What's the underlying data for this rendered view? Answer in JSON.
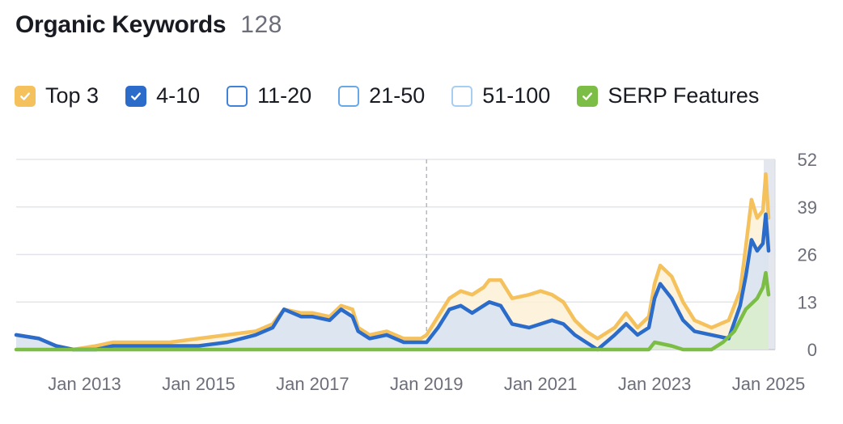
{
  "header": {
    "title": "Organic Keywords",
    "count": "128"
  },
  "legend": [
    {
      "label": "Top 3",
      "checked": true,
      "fill": "#f4c15d",
      "border": "#f4c15d",
      "icon": "check-icon"
    },
    {
      "label": "4-10",
      "checked": true,
      "fill": "#2b6bc9",
      "border": "#2b6bc9",
      "icon": "check-icon"
    },
    {
      "label": "11-20",
      "checked": false,
      "fill": "#ffffff",
      "border": "#3f82d8",
      "icon": ""
    },
    {
      "label": "21-50",
      "checked": false,
      "fill": "#ffffff",
      "border": "#69a8e6",
      "icon": ""
    },
    {
      "label": "51-100",
      "checked": false,
      "fill": "#ffffff",
      "border": "#a6cdf2",
      "icon": ""
    },
    {
      "label": "SERP Features",
      "checked": true,
      "fill": "#7cbd45",
      "border": "#7cbd45",
      "icon": "check-icon"
    }
  ],
  "chart_data": {
    "type": "area",
    "x_ticks": [
      "Jan 2013",
      "Jan 2015",
      "Jan 2017",
      "Jan 2019",
      "Jan 2021",
      "Jan 2023",
      "Jan 2025"
    ],
    "y_ticks": [
      "0",
      "13",
      "26",
      "39",
      "52"
    ],
    "ylim": [
      0,
      52
    ],
    "xlim": [
      2011.8,
      2025.0
    ],
    "y_axis_position": "right",
    "grid": true,
    "marker_line_x": 2019.0,
    "series": [
      {
        "name": "Top 3",
        "color": "#f4c15d",
        "fill": "#fdf1d6",
        "points": [
          [
            2011.8,
            4
          ],
          [
            2012.2,
            3
          ],
          [
            2012.5,
            1
          ],
          [
            2012.8,
            0
          ],
          [
            2013.2,
            1
          ],
          [
            2013.5,
            2
          ],
          [
            2014.0,
            2
          ],
          [
            2014.5,
            2
          ],
          [
            2015.0,
            3
          ],
          [
            2015.5,
            4
          ],
          [
            2016.0,
            5
          ],
          [
            2016.3,
            7
          ],
          [
            2016.5,
            11
          ],
          [
            2016.8,
            10
          ],
          [
            2017.0,
            10
          ],
          [
            2017.3,
            9
          ],
          [
            2017.5,
            12
          ],
          [
            2017.7,
            11
          ],
          [
            2017.8,
            6
          ],
          [
            2018.0,
            4
          ],
          [
            2018.3,
            5
          ],
          [
            2018.6,
            3
          ],
          [
            2018.9,
            3
          ],
          [
            2019.0,
            4
          ],
          [
            2019.2,
            9
          ],
          [
            2019.4,
            14
          ],
          [
            2019.6,
            16
          ],
          [
            2019.8,
            15
          ],
          [
            2020.0,
            17
          ],
          [
            2020.1,
            19
          ],
          [
            2020.3,
            19
          ],
          [
            2020.5,
            14
          ],
          [
            2020.8,
            15
          ],
          [
            2021.0,
            16
          ],
          [
            2021.2,
            15
          ],
          [
            2021.4,
            13
          ],
          [
            2021.6,
            8
          ],
          [
            2021.8,
            5
          ],
          [
            2022.0,
            3
          ],
          [
            2022.3,
            6
          ],
          [
            2022.5,
            10
          ],
          [
            2022.7,
            6
          ],
          [
            2022.9,
            9
          ],
          [
            2023.0,
            18
          ],
          [
            2023.1,
            23
          ],
          [
            2023.3,
            20
          ],
          [
            2023.5,
            13
          ],
          [
            2023.7,
            8
          ],
          [
            2024.0,
            6
          ],
          [
            2024.3,
            8
          ],
          [
            2024.5,
            16
          ],
          [
            2024.6,
            28
          ],
          [
            2024.7,
            41
          ],
          [
            2024.8,
            36
          ],
          [
            2024.9,
            38
          ],
          [
            2024.95,
            48
          ],
          [
            2025.0,
            36
          ]
        ]
      },
      {
        "name": "4-10",
        "color": "#2b6bc9",
        "fill": "#d7e2f3",
        "points": [
          [
            2011.8,
            4
          ],
          [
            2012.2,
            3
          ],
          [
            2012.5,
            1
          ],
          [
            2012.8,
            0
          ],
          [
            2013.2,
            0
          ],
          [
            2013.5,
            1
          ],
          [
            2014.0,
            1
          ],
          [
            2014.5,
            1
          ],
          [
            2015.0,
            1
          ],
          [
            2015.5,
            2
          ],
          [
            2016.0,
            4
          ],
          [
            2016.3,
            6
          ],
          [
            2016.5,
            11
          ],
          [
            2016.8,
            9
          ],
          [
            2017.0,
            9
          ],
          [
            2017.3,
            8
          ],
          [
            2017.5,
            11
          ],
          [
            2017.7,
            9
          ],
          [
            2017.8,
            5
          ],
          [
            2018.0,
            3
          ],
          [
            2018.3,
            4
          ],
          [
            2018.6,
            2
          ],
          [
            2018.9,
            2
          ],
          [
            2019.0,
            2
          ],
          [
            2019.2,
            6
          ],
          [
            2019.4,
            11
          ],
          [
            2019.6,
            12
          ],
          [
            2019.8,
            10
          ],
          [
            2020.0,
            12
          ],
          [
            2020.1,
            13
          ],
          [
            2020.3,
            12
          ],
          [
            2020.5,
            7
          ],
          [
            2020.8,
            6
          ],
          [
            2021.0,
            7
          ],
          [
            2021.2,
            8
          ],
          [
            2021.4,
            7
          ],
          [
            2021.6,
            4
          ],
          [
            2021.8,
            2
          ],
          [
            2022.0,
            0
          ],
          [
            2022.3,
            4
          ],
          [
            2022.5,
            7
          ],
          [
            2022.7,
            4
          ],
          [
            2022.9,
            6
          ],
          [
            2023.0,
            14
          ],
          [
            2023.1,
            18
          ],
          [
            2023.3,
            14
          ],
          [
            2023.5,
            8
          ],
          [
            2023.7,
            5
          ],
          [
            2024.0,
            4
          ],
          [
            2024.3,
            3
          ],
          [
            2024.5,
            12
          ],
          [
            2024.6,
            20
          ],
          [
            2024.7,
            30
          ],
          [
            2024.8,
            27
          ],
          [
            2024.9,
            29
          ],
          [
            2024.95,
            37
          ],
          [
            2025.0,
            27
          ]
        ]
      },
      {
        "name": "SERP Features",
        "color": "#7cbd45",
        "fill": "#dbeecb",
        "points": [
          [
            2011.8,
            0
          ],
          [
            2022.9,
            0
          ],
          [
            2023.0,
            2
          ],
          [
            2023.3,
            1
          ],
          [
            2023.5,
            0
          ],
          [
            2024.0,
            0
          ],
          [
            2024.2,
            2
          ],
          [
            2024.4,
            5
          ],
          [
            2024.6,
            11
          ],
          [
            2024.8,
            14
          ],
          [
            2024.9,
            17
          ],
          [
            2024.95,
            21
          ],
          [
            2025.0,
            15
          ]
        ]
      }
    ]
  }
}
